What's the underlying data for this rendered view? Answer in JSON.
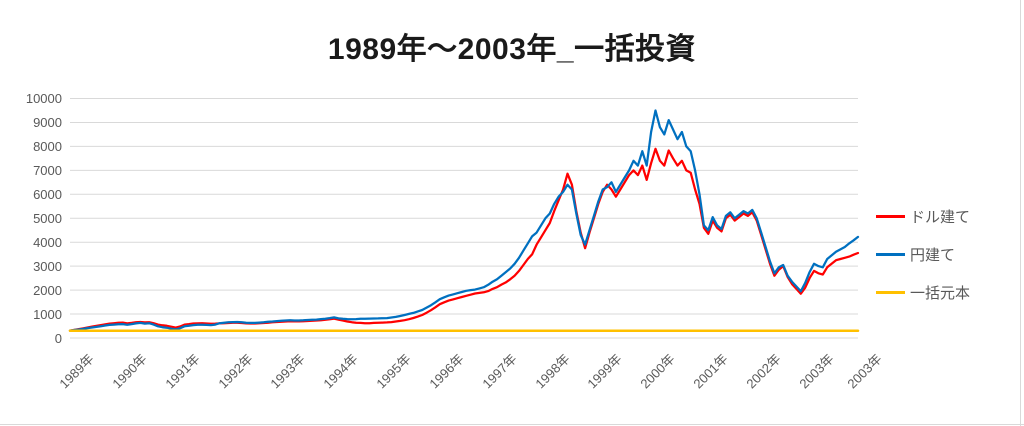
{
  "title": "1989年〜2003年_一括投資",
  "colors": {
    "usd_line": "#FF0000",
    "jpy_line": "#0070C0",
    "principal_line": "#FFC000",
    "gridline": "#D9D9D9",
    "tick_label": "#595959",
    "title_text": "#1A1A1A"
  },
  "legend": [
    {
      "label": "ドル建て",
      "color": "#FF0000"
    },
    {
      "label": "円建て",
      "color": "#0070C0"
    },
    {
      "label": "一括元本",
      "color": "#FFC000"
    }
  ],
  "y_axis": {
    "tick_labels": [
      "0",
      "1000",
      "2000",
      "3000",
      "4000",
      "5000",
      "6000",
      "7000",
      "8000",
      "9000",
      "10000"
    ],
    "min": 0,
    "max": 10000,
    "step": 1000
  },
  "x_axis": {
    "tick_labels": [
      "1989年",
      "1990年",
      "1991年",
      "1992年",
      "1993年",
      "1994年",
      "1995年",
      "1996年",
      "1997年",
      "1998年",
      "1999年",
      "2000年",
      "2001年",
      "2002年",
      "2003年",
      "2003年"
    ],
    "tick_month_index": [
      0,
      12,
      24,
      36,
      48,
      60,
      72,
      84,
      96,
      108,
      120,
      132,
      144,
      156,
      168,
      179
    ]
  },
  "chart_data": {
    "type": "line",
    "title": "1989年〜2003年_一括投資",
    "x_unit": "month",
    "x_range_label": "1989年〜2003年",
    "months": 180,
    "ylim": [
      0,
      10000
    ],
    "grid": "horizontal",
    "legend_position": "right",
    "series": [
      {
        "name": "ドル建て",
        "color": "#FF0000",
        "values": [
          310,
          340,
          370,
          405,
          440,
          475,
          510,
          540,
          570,
          600,
          620,
          635,
          645,
          610,
          630,
          655,
          670,
          650,
          660,
          620,
          560,
          530,
          510,
          470,
          435,
          480,
          560,
          580,
          605,
          610,
          615,
          605,
          595,
          600,
          610,
          615,
          625,
          635,
          640,
          625,
          610,
          605,
          605,
          615,
          625,
          640,
          655,
          670,
          680,
          690,
          700,
          695,
          695,
          700,
          710,
          720,
          730,
          745,
          760,
          780,
          810,
          770,
          730,
          690,
          660,
          640,
          630,
          620,
          620,
          630,
          640,
          645,
          650,
          665,
          690,
          715,
          745,
          785,
          835,
          895,
          960,
          1055,
          1160,
          1280,
          1410,
          1490,
          1560,
          1610,
          1660,
          1710,
          1760,
          1810,
          1860,
          1885,
          1910,
          1960,
          2050,
          2120,
          2230,
          2320,
          2450,
          2600,
          2800,
          3050,
          3300,
          3500,
          3900,
          4200,
          4500,
          4800,
          5300,
          5750,
          6200,
          6860,
          6400,
          5300,
          4400,
          3750,
          4400,
          5000,
          5600,
          6100,
          6400,
          6200,
          5900,
          6200,
          6500,
          6800,
          7000,
          6800,
          7200,
          6600,
          7300,
          7900,
          7400,
          7200,
          7830,
          7500,
          7200,
          7400,
          7000,
          6900,
          6200,
          5600,
          4600,
          4350,
          4900,
          4600,
          4450,
          5000,
          5150,
          4900,
          5050,
          5200,
          5100,
          5250,
          4900,
          4300,
          3700,
          3100,
          2600,
          2850,
          3000,
          2550,
          2250,
          2050,
          1850,
          2100,
          2500,
          2800,
          2700,
          2650,
          2950,
          3100,
          3250,
          3300,
          3350,
          3400,
          3480,
          3550
        ]
      },
      {
        "name": "円建て",
        "color": "#0070C0",
        "values": [
          310,
          335,
          355,
          385,
          415,
          440,
          465,
          490,
          520,
          545,
          560,
          570,
          580,
          550,
          580,
          610,
          630,
          600,
          620,
          560,
          490,
          450,
          430,
          390,
          360,
          410,
          490,
          515,
          540,
          550,
          555,
          545,
          540,
          560,
          620,
          640,
          655,
          665,
          670,
          655,
          640,
          630,
          630,
          645,
          655,
          675,
          690,
          705,
          720,
          730,
          740,
          730,
          730,
          740,
          750,
          760,
          770,
          790,
          805,
          830,
          860,
          820,
          800,
          790,
          780,
          790,
          800,
          805,
          810,
          815,
          820,
          825,
          830,
          855,
          880,
          920,
          960,
          1005,
          1050,
          1110,
          1170,
          1270,
          1370,
          1490,
          1620,
          1700,
          1770,
          1820,
          1870,
          1920,
          1970,
          2000,
          2020,
          2070,
          2120,
          2220,
          2350,
          2450,
          2600,
          2750,
          2900,
          3100,
          3350,
          3650,
          3950,
          4250,
          4400,
          4700,
          5000,
          5200,
          5600,
          5900,
          6100,
          6400,
          6200,
          5200,
          4300,
          3900,
          4500,
          5100,
          5700,
          6200,
          6300,
          6500,
          6100,
          6400,
          6700,
          7000,
          7400,
          7200,
          7800,
          7200,
          8600,
          9500,
          8800,
          8500,
          9100,
          8700,
          8300,
          8600,
          8000,
          7800,
          7000,
          6000,
          4700,
          4500,
          5050,
          4700,
          4550,
          5100,
          5250,
          5000,
          5150,
          5300,
          5200,
          5350,
          5000,
          4400,
          3800,
          3200,
          2700,
          2950,
          3050,
          2600,
          2350,
          2150,
          1950,
          2300,
          2750,
          3100,
          3000,
          2950,
          3300,
          3450,
          3600,
          3700,
          3800,
          3950,
          4080,
          4220
        ]
      },
      {
        "name": "一括元本",
        "color": "#FFC000",
        "constant": 300
      }
    ]
  }
}
